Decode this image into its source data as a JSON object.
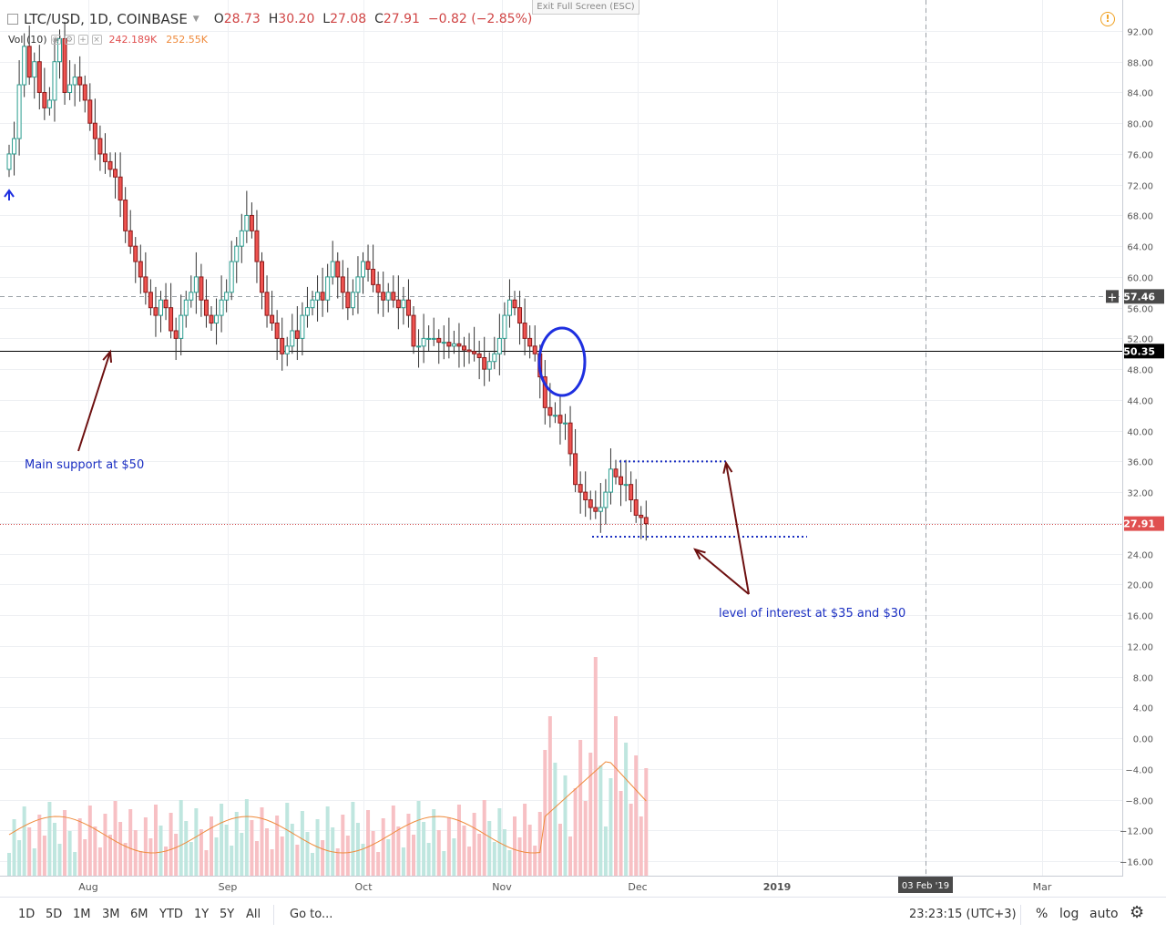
{
  "header": {
    "symbol": "LTC/USD, 1D, COINBASE",
    "o_label": "O",
    "o_value": "28.73",
    "h_label": "H",
    "h_value": "30.20",
    "l_label": "L",
    "l_value": "27.08",
    "c_label": "C",
    "c_value": "27.91",
    "change": "−0.82 (−2.85%)"
  },
  "volume_legend": {
    "label": "Vol (10)",
    "value": "242.189K",
    "ma_value": "252.55K"
  },
  "exit_fullscreen": "Exit Full Screen (ESC)",
  "annotations": {
    "support": "Main support at $50",
    "interest": "level of interest at $35 and $30"
  },
  "bottom": {
    "timeframes": [
      "1D",
      "5D",
      "1M",
      "3M",
      "6M",
      "YTD",
      "1Y",
      "5Y",
      "All"
    ],
    "goto": "Go to...",
    "clock": "23:23:15 (UTC+3)",
    "percent": "%",
    "log": "log",
    "auto": "auto"
  },
  "colors": {
    "up": "#26a69a",
    "down": "#ef5350",
    "vol_up": "#bfe6df",
    "vol_down": "#f7c0c4",
    "volma": "#ef8a3b",
    "annotation": "#1b2fc2",
    "arrow": "#6d1010",
    "price_line": "#d04545"
  },
  "icons": {
    "warning": "warning-icon",
    "settings": "gear-icon",
    "scroll_left": "arrow-up-icon"
  },
  "chart_data": {
    "type": "candlestick",
    "title": "LTC/USD, 1D, COINBASE",
    "x_labels": [
      "Aug",
      "Sep",
      "Oct",
      "Nov",
      "Dec",
      "2019",
      "03 Feb '19",
      "Mar"
    ],
    "y_ticks": [
      "92.00",
      "88.00",
      "84.00",
      "80.00",
      "76.00",
      "72.00",
      "68.00",
      "64.00",
      "60.00",
      "56.00",
      "52.00",
      "48.00",
      "44.00",
      "40.00",
      "36.00",
      "32.00",
      "28.00",
      "24.00",
      "20.00",
      "16.00",
      "12.00",
      "8.00",
      "4.00",
      "0.00",
      "−4.00",
      "−8.00",
      "−12.00",
      "−16.00"
    ],
    "ylim": [
      -16,
      92
    ],
    "price_labels": {
      "crosshair": "57.46",
      "support": "50.35",
      "last": "27.91"
    },
    "levels": {
      "crosshair": 57.46,
      "support": 50.35,
      "last": 27.91,
      "upper_range": 36,
      "lower_range": 26.2
    },
    "ohlc_close": [
      76,
      78,
      85,
      90,
      86,
      88,
      84,
      82,
      83,
      88,
      91,
      84,
      85,
      86,
      85,
      83,
      80,
      78,
      76,
      75,
      74,
      73,
      70,
      66,
      64,
      62,
      60,
      58,
      56,
      55,
      57,
      56,
      53,
      52,
      55,
      57,
      58,
      60,
      57,
      55,
      54,
      55,
      57,
      58,
      62,
      64,
      66,
      68,
      66,
      62,
      58,
      55,
      54,
      52,
      50,
      51,
      53,
      52,
      55,
      56,
      57,
      58,
      57,
      60,
      62,
      60,
      58,
      56,
      58,
      60,
      62,
      61,
      59,
      58,
      57,
      58,
      57,
      56,
      57,
      55,
      51,
      51,
      52,
      52,
      52,
      51.5,
      51.5,
      51,
      51.3,
      51,
      50.5,
      50.3,
      50,
      49.5,
      48,
      49,
      50,
      52,
      55,
      57,
      56,
      54,
      52,
      51,
      50,
      47,
      43,
      42,
      42,
      41,
      41,
      37,
      33,
      32,
      31,
      30,
      29.5,
      30,
      32,
      35,
      34,
      33,
      33,
      31,
      29,
      28.7,
      27.91
    ],
    "volume_ma_trend": "rising"
  }
}
